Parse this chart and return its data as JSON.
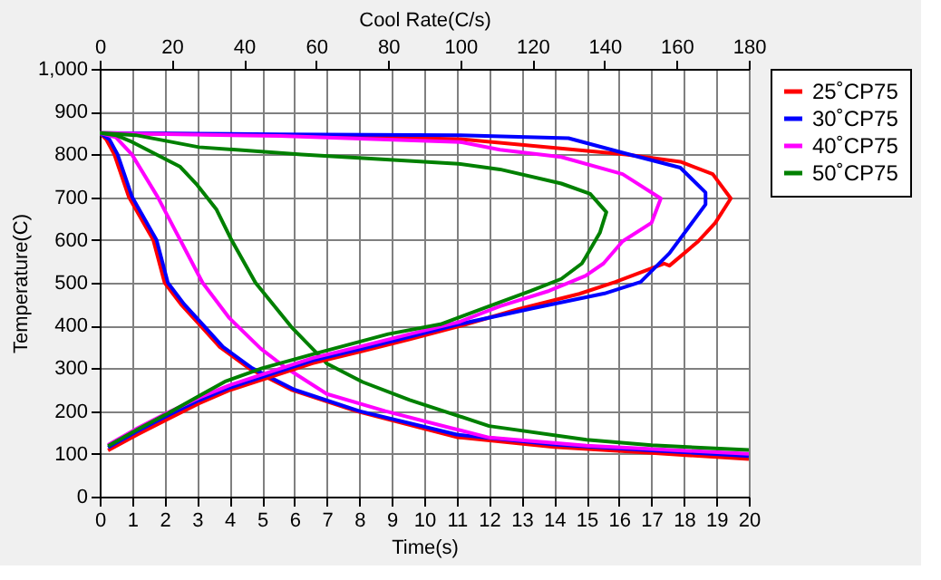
{
  "chart_data": {
    "type": "line",
    "xlabel": "Time(s)",
    "x2label": "Cool Rate(C/s)",
    "ylabel": "Temperature(C)",
    "xlim": [
      0,
      20
    ],
    "xticks": [
      0,
      1,
      2,
      3,
      4,
      5,
      6,
      7,
      8,
      9,
      10,
      11,
      12,
      13,
      14,
      15,
      16,
      17,
      18,
      19,
      20
    ],
    "x2lim": [
      0,
      180
    ],
    "x2ticks": [
      0,
      20,
      40,
      60,
      80,
      100,
      120,
      140,
      160,
      180
    ],
    "ylim": [
      0,
      1000
    ],
    "yticks": [
      0,
      100,
      200,
      300,
      400,
      500,
      600,
      700,
      800,
      900,
      {
        "value": 1000,
        "label": "1,000"
      }
    ],
    "grid": true,
    "legend": "top right",
    "marker": "none",
    "line_style": "solid",
    "series": [
      {
        "name": "25˚CP75",
        "color": "#ff0000",
        "x": [
          0,
          0.2,
          0.45,
          0.9,
          1.65,
          2.0,
          2.5,
          3.1,
          3.7,
          4.6,
          5.9,
          7.9,
          11,
          14,
          17,
          20
        ],
        "values": [
          850,
          835,
          800,
          700,
          600,
          500,
          450,
          400,
          350,
          300,
          250,
          200,
          139,
          116,
          102,
          88
        ]
      },
      {
        "name": "30˚CP75",
        "color": "#0000ff",
        "x": [
          0,
          0.3,
          0.55,
          1.0,
          1.75,
          2.1,
          2.6,
          3.2,
          3.8,
          4.7,
          6.0,
          8.0,
          11,
          14,
          17,
          20
        ],
        "values": [
          850,
          835,
          800,
          700,
          600,
          500,
          450,
          400,
          350,
          300,
          250,
          200,
          145,
          122,
          108,
          95
        ]
      },
      {
        "name": "40˚CP75",
        "color": "#ff00ff",
        "x": [
          0,
          0.5,
          0.99,
          1.79,
          2.48,
          3.17,
          4.0,
          4.96,
          5.7,
          7.0,
          8.8,
          10.9,
          12,
          15,
          20
        ],
        "values": [
          850,
          840,
          800,
          700,
          600,
          500,
          417,
          346,
          303,
          240,
          200,
          159,
          138,
          119,
          100
        ]
      },
      {
        "name": "50˚CP75",
        "color": "#008000",
        "x": [
          0,
          0.5,
          1.0,
          2.48,
          3.0,
          3.6,
          4.06,
          4.8,
          5.9,
          7.0,
          8.1,
          9.55,
          11,
          12,
          15,
          17,
          20
        ],
        "values": [
          850,
          845,
          829,
          771,
          729,
          671,
          600,
          500,
          397,
          311,
          268,
          226,
          190,
          165,
          133,
          120,
          109
        ]
      },
      {
        "axis": "x2",
        "color": "#ff0000",
        "x": [
          0,
          50,
          100,
          146,
          161,
          170,
          175,
          170.7,
          166,
          158,
          156.5,
          143,
          133,
          116,
          99.6,
          86,
          72.7,
          59,
          45.9,
          35.8,
          27.5,
          19,
          10.7,
          2.3
        ],
        "values": [
          850,
          845,
          836,
          800,
          783,
          754,
          697,
          640,
          597,
          540,
          545,
          502,
          474,
          438,
          398,
          368,
          340,
          312,
          276,
          248,
          218,
          182,
          146,
          108
        ]
      },
      {
        "axis": "x2",
        "color": "#0000ff",
        "x": [
          0,
          50,
          100,
          130,
          145,
          161,
          168,
          168,
          163,
          158,
          150,
          140,
          120,
          99.6,
          86,
          72.7,
          59,
          45.9,
          35.8,
          27.5,
          19,
          10.7,
          2.3
        ],
        "values": [
          850,
          847,
          845,
          838,
          804,
          769,
          711,
          683,
          626,
          569,
          502,
          475,
          440,
          403,
          374,
          346,
          318,
          282,
          254,
          225,
          190,
          154,
          115
        ]
      },
      {
        "axis": "x2",
        "color": "#ff00ff",
        "x": [
          0,
          50,
          100,
          111,
          128,
          145,
          155.6,
          153,
          145,
          139.7,
          134.7,
          124.6,
          111,
          99.6,
          86,
          72.7,
          59,
          45.9,
          35.8,
          27.5,
          19,
          10.7,
          2.3
        ],
        "values": [
          850,
          843,
          829,
          811,
          794,
          754,
          697,
          640,
          597,
          545,
          516,
          481,
          445,
          408,
          380,
          352,
          324,
          288,
          260,
          231,
          197,
          161,
          121
        ]
      },
      {
        "axis": "x2",
        "color": "#008000",
        "x": [
          0,
          10,
          27.5,
          56,
          99.5,
          111,
          128,
          136,
          140.5,
          138.7,
          134.7,
          133.7,
          128,
          119.6,
          108,
          94.5,
          80,
          60,
          45,
          35,
          27.5,
          19,
          10.7,
          2.3
        ],
        "values": [
          850,
          845,
          817,
          800,
          778,
          765,
          732,
          708,
          665,
          617,
          559,
          545,
          509,
          481,
          445,
          403,
          380,
          335,
          300,
          270,
          235,
          195,
          158,
          118
        ]
      }
    ]
  }
}
